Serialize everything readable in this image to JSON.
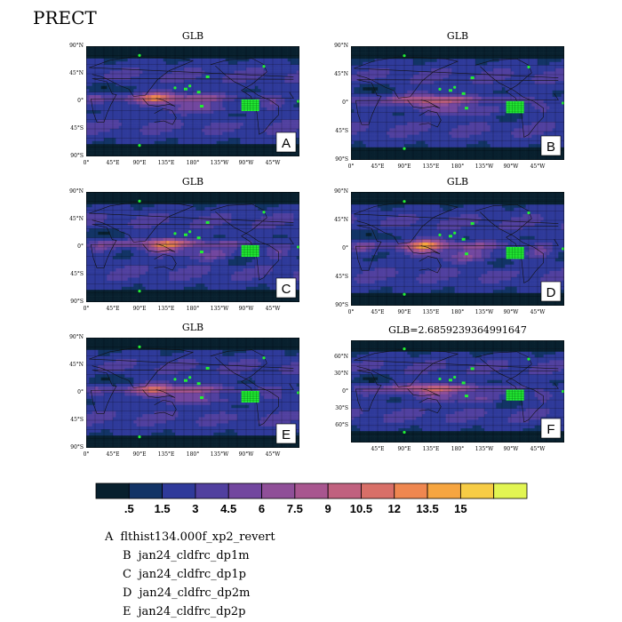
{
  "title": "PRECT",
  "colors": [
    "#08202e",
    "#123466",
    "#2f3a9a",
    "#51409f",
    "#72479f",
    "#8f4f98",
    "#a8568f",
    "#c0617f",
    "#d86f68",
    "#ef8750",
    "#f6a540",
    "#f7cc45",
    "#e2f552"
  ],
  "chart_data": [
    {
      "type": "heatmap",
      "panel": "A",
      "title": "GLB",
      "yticks": [
        "90°N",
        "45°N",
        "0°",
        "45°S",
        "90°S"
      ],
      "xticks": [
        "0°",
        "45°E",
        "90°E",
        "135°E",
        "180°",
        "135°W",
        "90°W",
        "45°W"
      ],
      "xlim": [
        0,
        360
      ],
      "ylim": [
        -90,
        90
      ]
    },
    {
      "type": "heatmap",
      "panel": "B",
      "title": "GLB",
      "yticks": [
        "90°N",
        "45°N",
        "0°",
        "45°S",
        "90°S"
      ],
      "xticks": [
        "0°",
        "45°E",
        "90°E",
        "135°E",
        "180°",
        "135°W",
        "90°W",
        "45°W"
      ],
      "xlim": [
        0,
        360
      ],
      "ylim": [
        -90,
        90
      ]
    },
    {
      "type": "heatmap",
      "panel": "C",
      "title": "GLB",
      "yticks": [
        "90°N",
        "45°N",
        "0°",
        "45°S",
        "90°S"
      ],
      "xticks": [
        "0°",
        "45°E",
        "90°E",
        "135°E",
        "180°",
        "135°W",
        "90°W",
        "45°W"
      ],
      "xlim": [
        0,
        360
      ],
      "ylim": [
        -90,
        90
      ]
    },
    {
      "type": "heatmap",
      "panel": "D",
      "title": "GLB",
      "yticks": [
        "90°N",
        "45°N",
        "0°",
        "45°S",
        "90°S"
      ],
      "xticks": [
        "0°",
        "45°E",
        "90°E",
        "135°E",
        "180°",
        "135°W",
        "90°W",
        "45°W"
      ],
      "xlim": [
        0,
        360
      ],
      "ylim": [
        -90,
        90
      ]
    },
    {
      "type": "heatmap",
      "panel": "E",
      "title": "GLB",
      "yticks": [
        "90°N",
        "45°N",
        "0°",
        "45°S",
        "90°S"
      ],
      "xticks": [
        "0°",
        "45°E",
        "90°E",
        "135°E",
        "180°",
        "135°W",
        "90°W",
        "45°W"
      ],
      "xlim": [
        0,
        360
      ],
      "ylim": [
        -90,
        90
      ]
    },
    {
      "type": "heatmap",
      "panel": "F",
      "title": "GLB=2.6859239364991647",
      "yticks": [
        "60°N",
        "30°N",
        "0°",
        "30°S",
        "60°S"
      ],
      "xticks": [
        "45°E",
        "90°E",
        "135°E",
        "180°",
        "135°W",
        "90°W",
        "45°W"
      ],
      "xlim": [
        0,
        360
      ],
      "ylim": [
        -90,
        90
      ]
    }
  ],
  "colorbar": {
    "labels": [
      ".5",
      "1.5",
      "3",
      "4.5",
      "6",
      "7.5",
      "9",
      "10.5",
      "12",
      "13.5",
      "15"
    ]
  },
  "legend": [
    {
      "key": "A",
      "text": "flthist134.000f_xp2_revert"
    },
    {
      "key": "B",
      "text": "jan24_cldfrc_dp1m"
    },
    {
      "key": "C",
      "text": "jan24_cldfrc_dp1p"
    },
    {
      "key": "D",
      "text": "jan24_cldfrc_dp2m"
    },
    {
      "key": "E",
      "text": "jan24_cldfrc_dp2p"
    }
  ]
}
